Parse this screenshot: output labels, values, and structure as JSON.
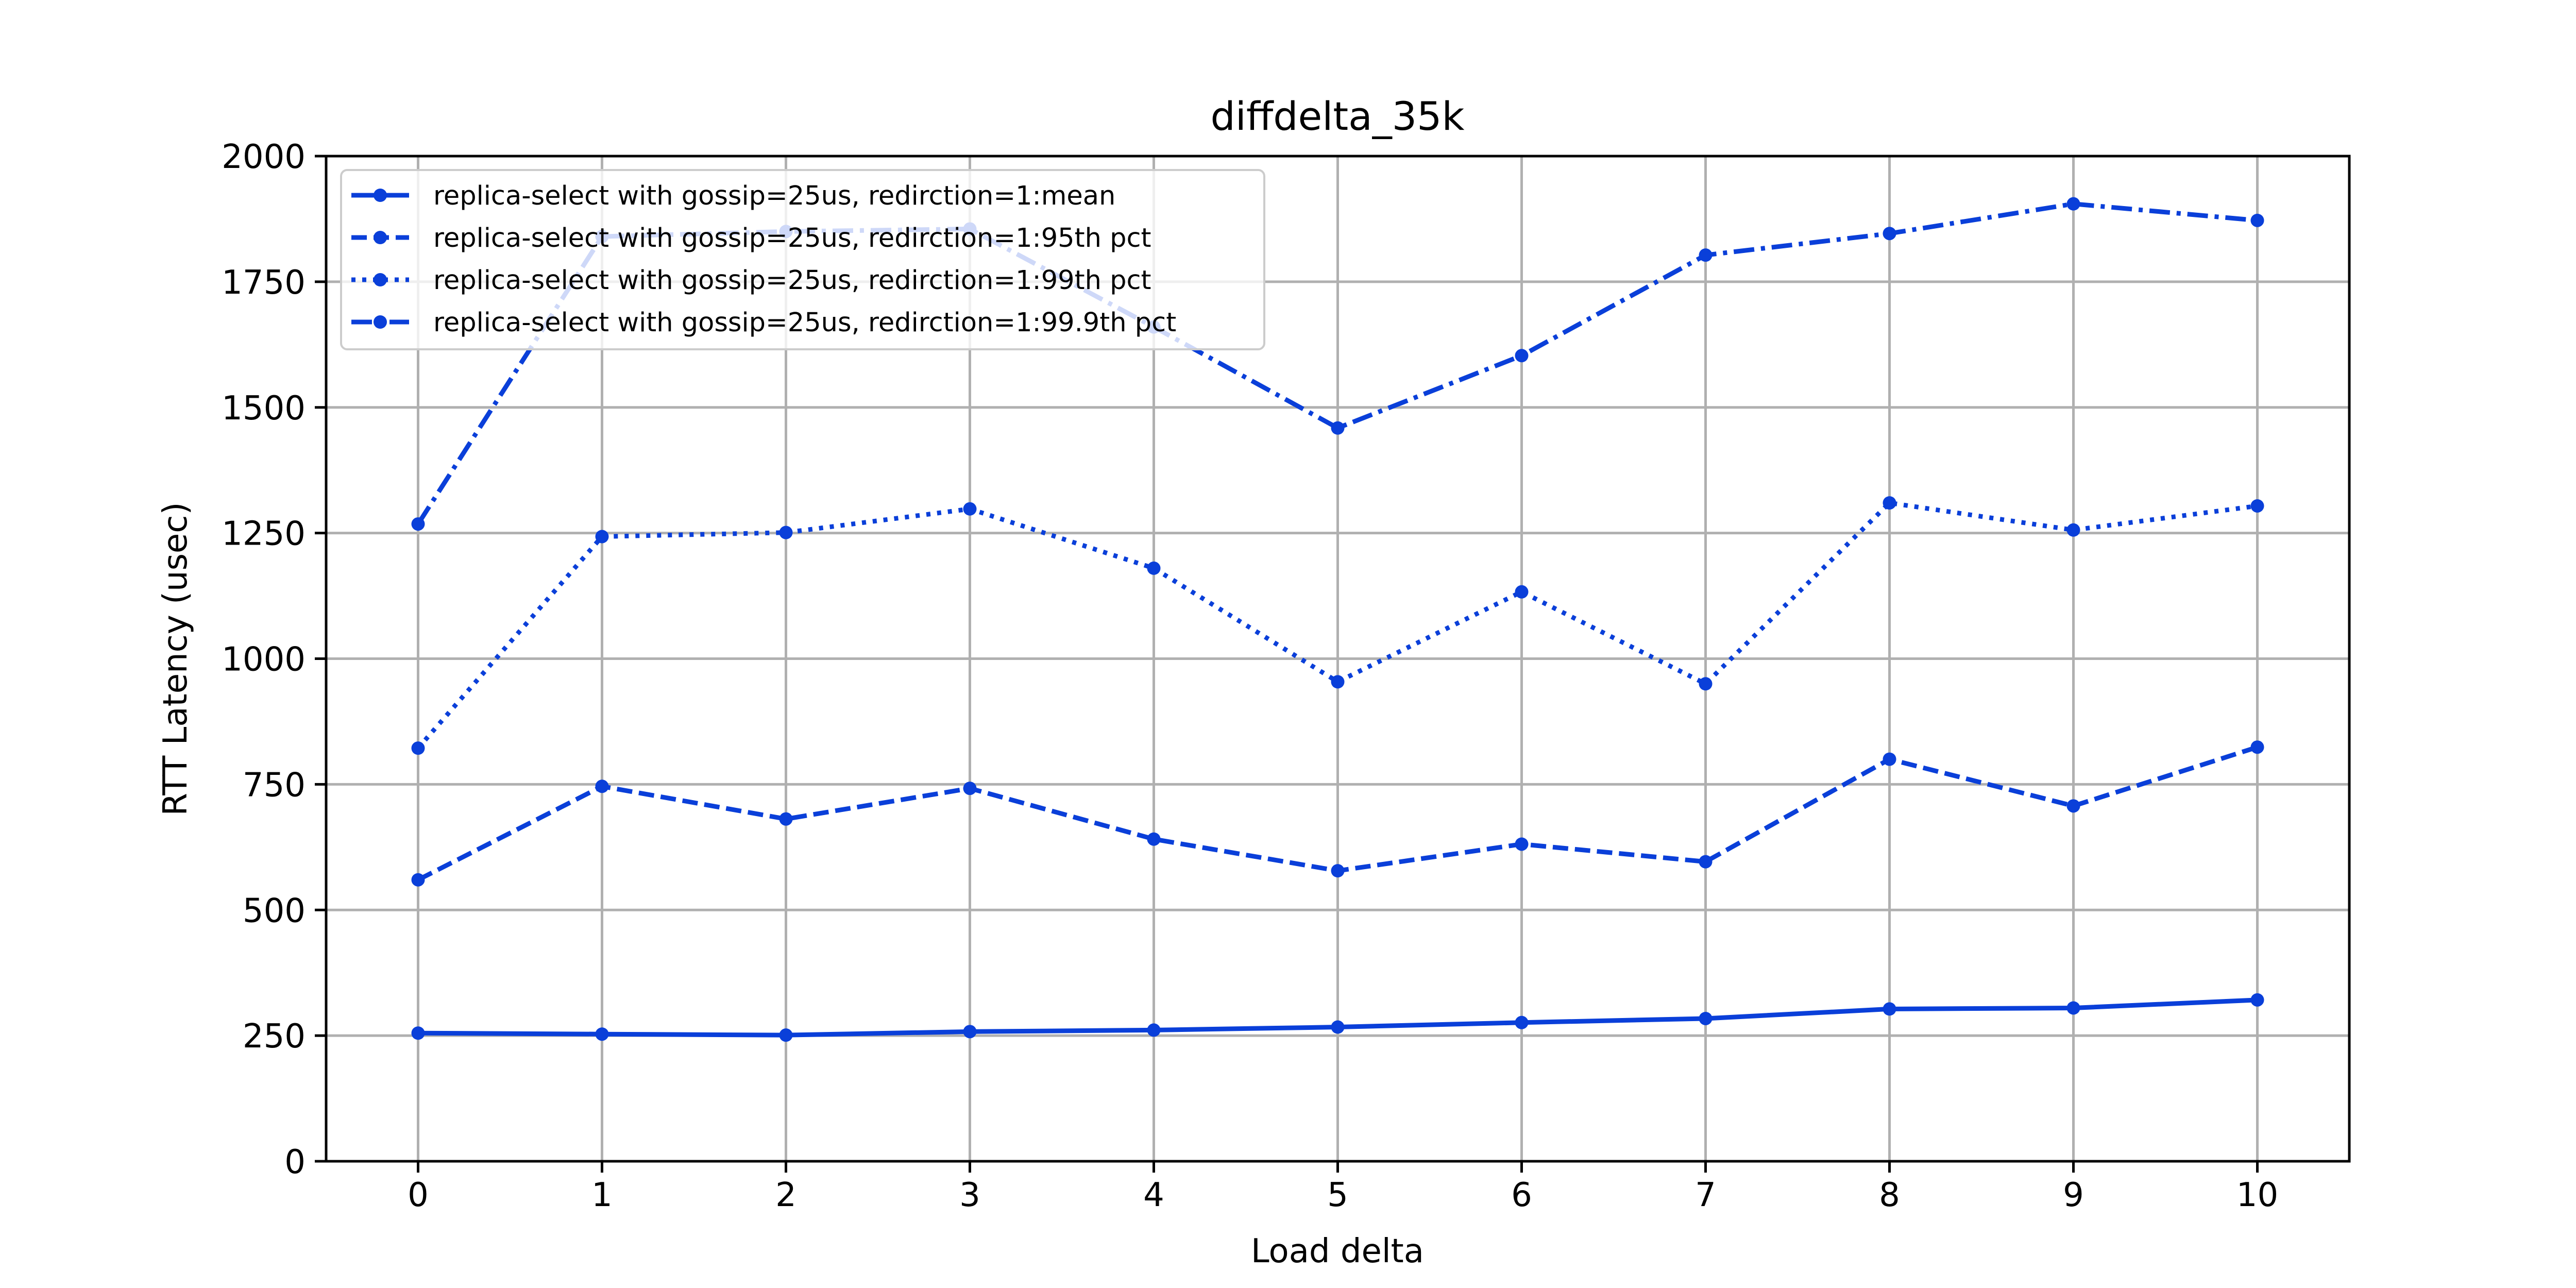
{
  "chart_data": {
    "type": "line",
    "title": "diffdelta_35k",
    "xlabel": "Load delta",
    "ylabel": "RTT Latency (usec)",
    "x": [
      0,
      1,
      2,
      3,
      4,
      5,
      6,
      7,
      8,
      9,
      10
    ],
    "xlim": [
      -0.5,
      10.5
    ],
    "ylim": [
      0,
      2000
    ],
    "xticks": [
      "0",
      "1",
      "2",
      "3",
      "4",
      "5",
      "6",
      "7",
      "8",
      "9",
      "10"
    ],
    "yticks": [
      "0",
      "250",
      "500",
      "750",
      "1000",
      "1250",
      "1500",
      "1750",
      "2000"
    ],
    "grid": true,
    "legend_position": "upper-left",
    "color": "#0a3fd9",
    "series": [
      {
        "name": "replica-select with gossip=25us, redirction=1:mean",
        "linestyle": "solid",
        "values": [
          255,
          253,
          251,
          258,
          261,
          267,
          276,
          284,
          303,
          305,
          321
        ]
      },
      {
        "name": "replica-select with gossip=25us, redirction=1:95th pct",
        "linestyle": "dashed",
        "values": [
          560,
          746,
          681,
          742,
          641,
          578,
          631,
          596,
          800,
          707,
          824
        ]
      },
      {
        "name": "replica-select with gossip=25us, redirction=1:99th pct",
        "linestyle": "dotted",
        "values": [
          822,
          1243,
          1251,
          1298,
          1180,
          954,
          1133,
          950,
          1310,
          1256,
          1304
        ]
      },
      {
        "name": "replica-select with gossip=25us, redirction=1:99.9th pct",
        "linestyle": "dashdot",
        "values": [
          1268,
          1840,
          1850,
          1855,
          1660,
          1459,
          1603,
          1803,
          1846,
          1905,
          1872
        ]
      }
    ]
  }
}
